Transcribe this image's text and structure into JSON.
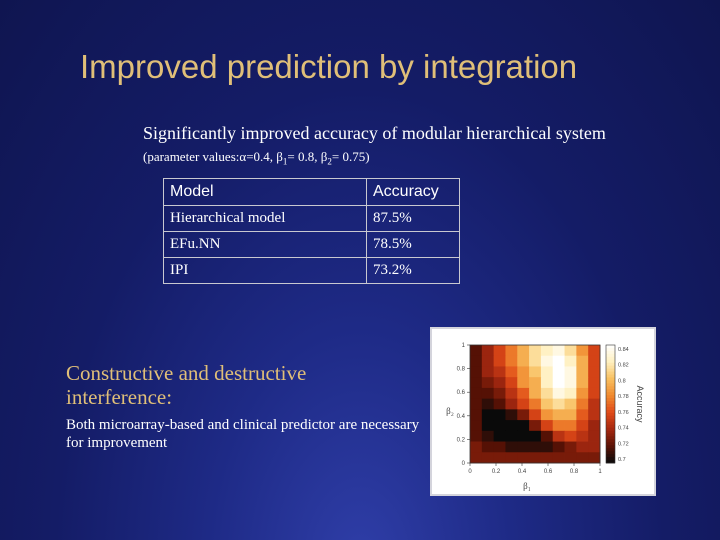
{
  "slide": {
    "title": "Improved prediction by integration",
    "subtitle_main": "Significantly improved accuracy of modular hierarchical system",
    "subtitle_params": {
      "prefix": "(parameter values:",
      "alpha": "α",
      "alpha_value": "=0.4, ",
      "beta": "β",
      "beta1_sub": "1",
      "beta1_value": "= 0.8, ",
      "beta2_sub": "2",
      "beta2_value": "= 0.75)"
    }
  },
  "table": {
    "header": [
      "Model",
      "Accuracy"
    ],
    "rows": [
      [
        "Hierarchical  model",
        "87.5%"
      ],
      [
        "EFu.NN",
        "78.5%"
      ],
      [
        "IPI",
        "73.2%"
      ]
    ]
  },
  "interference": {
    "heading": "Constructive and destructive interference:",
    "body": "Both microarray-based and clinical predictor are necessary for improvement"
  },
  "chart_data": {
    "type": "heatmap",
    "xlabel": "β₁",
    "ylabel": "β₂",
    "colorbar_label": "Accuracy",
    "x_ticks": [
      "0",
      "0.2",
      "0.4",
      "0.6",
      "0.8",
      "1"
    ],
    "y_ticks": [
      "0",
      "0.2",
      "0.4",
      "0.6",
      "0.8",
      "1"
    ],
    "colorbar_ticks": [
      "0.84",
      "0.82",
      "0.8",
      "0.78",
      "0.76",
      "0.74",
      "0.72",
      "0.7"
    ],
    "x": [
      0,
      0.1,
      0.2,
      0.3,
      0.4,
      0.5,
      0.6,
      0.7,
      0.8,
      0.9,
      1
    ],
    "y": [
      1,
      0.9,
      0.8,
      0.7,
      0.6,
      0.5,
      0.4,
      0.3,
      0.2,
      0.1,
      0
    ],
    "z": [
      [
        0.72,
        0.74,
        0.76,
        0.78,
        0.8,
        0.82,
        0.83,
        0.84,
        0.82,
        0.79,
        0.76
      ],
      [
        0.72,
        0.74,
        0.76,
        0.78,
        0.8,
        0.82,
        0.84,
        0.85,
        0.83,
        0.8,
        0.76
      ],
      [
        0.72,
        0.74,
        0.75,
        0.77,
        0.79,
        0.81,
        0.83,
        0.85,
        0.84,
        0.8,
        0.76
      ],
      [
        0.72,
        0.73,
        0.74,
        0.76,
        0.79,
        0.8,
        0.83,
        0.85,
        0.84,
        0.8,
        0.76
      ],
      [
        0.72,
        0.72,
        0.73,
        0.75,
        0.77,
        0.8,
        0.82,
        0.84,
        0.83,
        0.79,
        0.76
      ],
      [
        0.72,
        0.71,
        0.72,
        0.74,
        0.76,
        0.78,
        0.81,
        0.82,
        0.81,
        0.78,
        0.75
      ],
      [
        0.72,
        0.7,
        0.7,
        0.71,
        0.73,
        0.76,
        0.79,
        0.8,
        0.8,
        0.77,
        0.75
      ],
      [
        0.72,
        0.7,
        0.7,
        0.7,
        0.7,
        0.73,
        0.76,
        0.78,
        0.78,
        0.76,
        0.74
      ],
      [
        0.72,
        0.71,
        0.7,
        0.7,
        0.7,
        0.7,
        0.72,
        0.75,
        0.76,
        0.75,
        0.74
      ],
      [
        0.73,
        0.72,
        0.72,
        0.71,
        0.71,
        0.71,
        0.71,
        0.72,
        0.73,
        0.74,
        0.74
      ],
      [
        0.73,
        0.73,
        0.73,
        0.73,
        0.73,
        0.73,
        0.73,
        0.73,
        0.73,
        0.73,
        0.73
      ]
    ],
    "zlim": [
      0.7,
      0.85
    ],
    "colormap": [
      "#0a0a0a",
      "#5a1205",
      "#a52810",
      "#e04a18",
      "#f08a30",
      "#f8c060",
      "#fff0c0",
      "#ffffff"
    ]
  }
}
